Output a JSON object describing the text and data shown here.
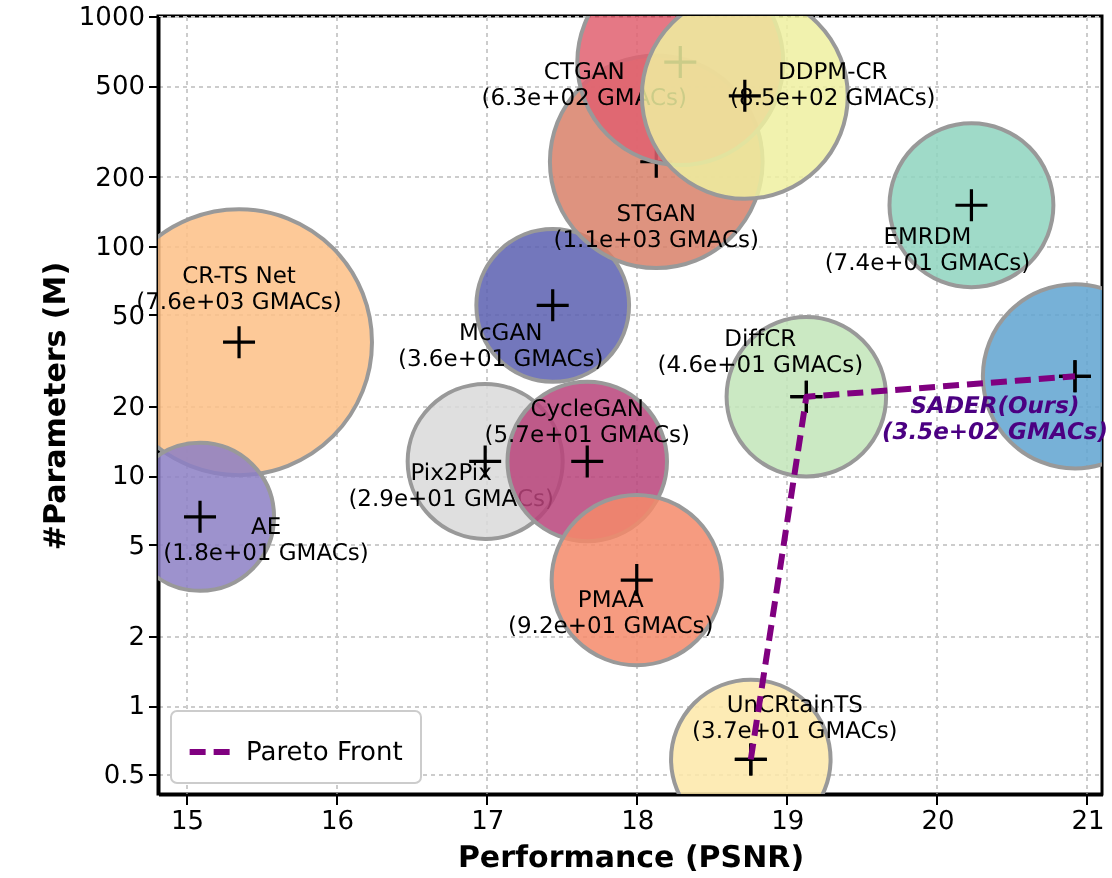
{
  "chart_data": {
    "type": "bubble",
    "xlabel": "Performance (PSNR)",
    "ylabel": "#Parameters (M)",
    "xlim": [
      14.81,
      21.1
    ],
    "xticks": [
      15,
      16,
      17,
      18,
      19,
      20,
      21
    ],
    "ylim": [
      0.41,
      1000
    ],
    "yticks": [
      0.5,
      1,
      2,
      5,
      10,
      20,
      50,
      100,
      200,
      500,
      1000
    ],
    "log": "y",
    "grid": true,
    "legend": "bottom left",
    "series": [
      {
        "name": "CR-TS Net",
        "color": "#fdbf86",
        "x": [
          15.35
        ],
        "values": [
          38
        ],
        "sizes": [
          1
        ],
        "value_labels": [
          "(7.6e+03 GMACs)"
        ]
      },
      {
        "name": "AE",
        "color": "#8c7fc4",
        "x": [
          15.09
        ],
        "values": [
          6.6
        ],
        "sizes": [
          0.31
        ],
        "value_labels": [
          "(1.8e+01 GMACs)"
        ]
      },
      {
        "name": "McGAN",
        "color": "#5b5fb0",
        "x": [
          17.44
        ],
        "values": [
          55
        ],
        "sizes": [
          0.33
        ],
        "value_labels": [
          "(3.6e+01 GMACs)"
        ]
      },
      {
        "name": "Pix2Pix",
        "color": "#d9d9d9",
        "x": [
          16.99
        ],
        "values": [
          11.5
        ],
        "sizes": [
          0.34
        ],
        "value_labels": [
          "(2.9e+01 GMACs)"
        ]
      },
      {
        "name": "CycleGAN",
        "color": "#b8437a",
        "x": [
          17.67
        ],
        "values": [
          11.5
        ],
        "sizes": [
          0.36
        ],
        "value_labels": [
          "(5.7e+01 GMACs)"
        ]
      },
      {
        "name": "PMAA",
        "color": "#f58a6a",
        "x": [
          18.0
        ],
        "values": [
          3.5
        ],
        "sizes": [
          0.41
        ],
        "value_labels": [
          "(9.2e+01 GMACs)"
        ]
      },
      {
        "name": "UnCRtainTS",
        "color": "#fde8a8",
        "x": [
          18.76
        ],
        "values": [
          0.58
        ],
        "sizes": [
          0.36
        ],
        "value_labels": [
          "(3.7e+01 GMACs)"
        ]
      },
      {
        "name": "DiffCR",
        "color": "#c2e5b8",
        "x": [
          19.13
        ],
        "values": [
          22
        ],
        "sizes": [
          0.36
        ],
        "value_labels": [
          "(4.6e+01 GMACs)"
        ]
      },
      {
        "name": "SADER(Ours)",
        "color": "#5fa3d0",
        "x": [
          20.92
        ],
        "values": [
          27
        ],
        "sizes": [
          0.48
        ],
        "value_labels": [
          "(3.5e+02 GMACs)"
        ]
      },
      {
        "name": "EMRDM",
        "color": "#8ed3be",
        "x": [
          20.23
        ],
        "values": [
          150
        ],
        "sizes": [
          0.38
        ],
        "value_labels": [
          "(7.4e+01 GMACs)"
        ]
      },
      {
        "name": "STGAN",
        "color": "#d88068",
        "x": [
          18.13
        ],
        "values": [
          232
        ],
        "sizes": [
          0.64
        ],
        "value_labels": [
          "(1.1e+03 GMACs)"
        ]
      },
      {
        "name": "CTGAN",
        "color": "#e06070",
        "x": [
          18.29
        ],
        "values": [
          630
        ],
        "sizes": [
          0.6
        ],
        "value_labels": [
          "(6.3e+02 GMACs)"
        ]
      },
      {
        "name": "DDPM-CR",
        "color": "#eef0a0",
        "x": [
          18.72
        ],
        "values": [
          449
        ],
        "sizes": [
          0.6
        ],
        "value_labels": [
          "(8.5e+02 GMACs)"
        ]
      },
      {
        "name": "Pareto Front",
        "type": "line",
        "line_style": "dashed",
        "marker": "cross",
        "color": "#800080",
        "x": [
          18.76,
          19.13,
          20.92
        ],
        "values": [
          0.58,
          22,
          27
        ]
      }
    ]
  }
}
